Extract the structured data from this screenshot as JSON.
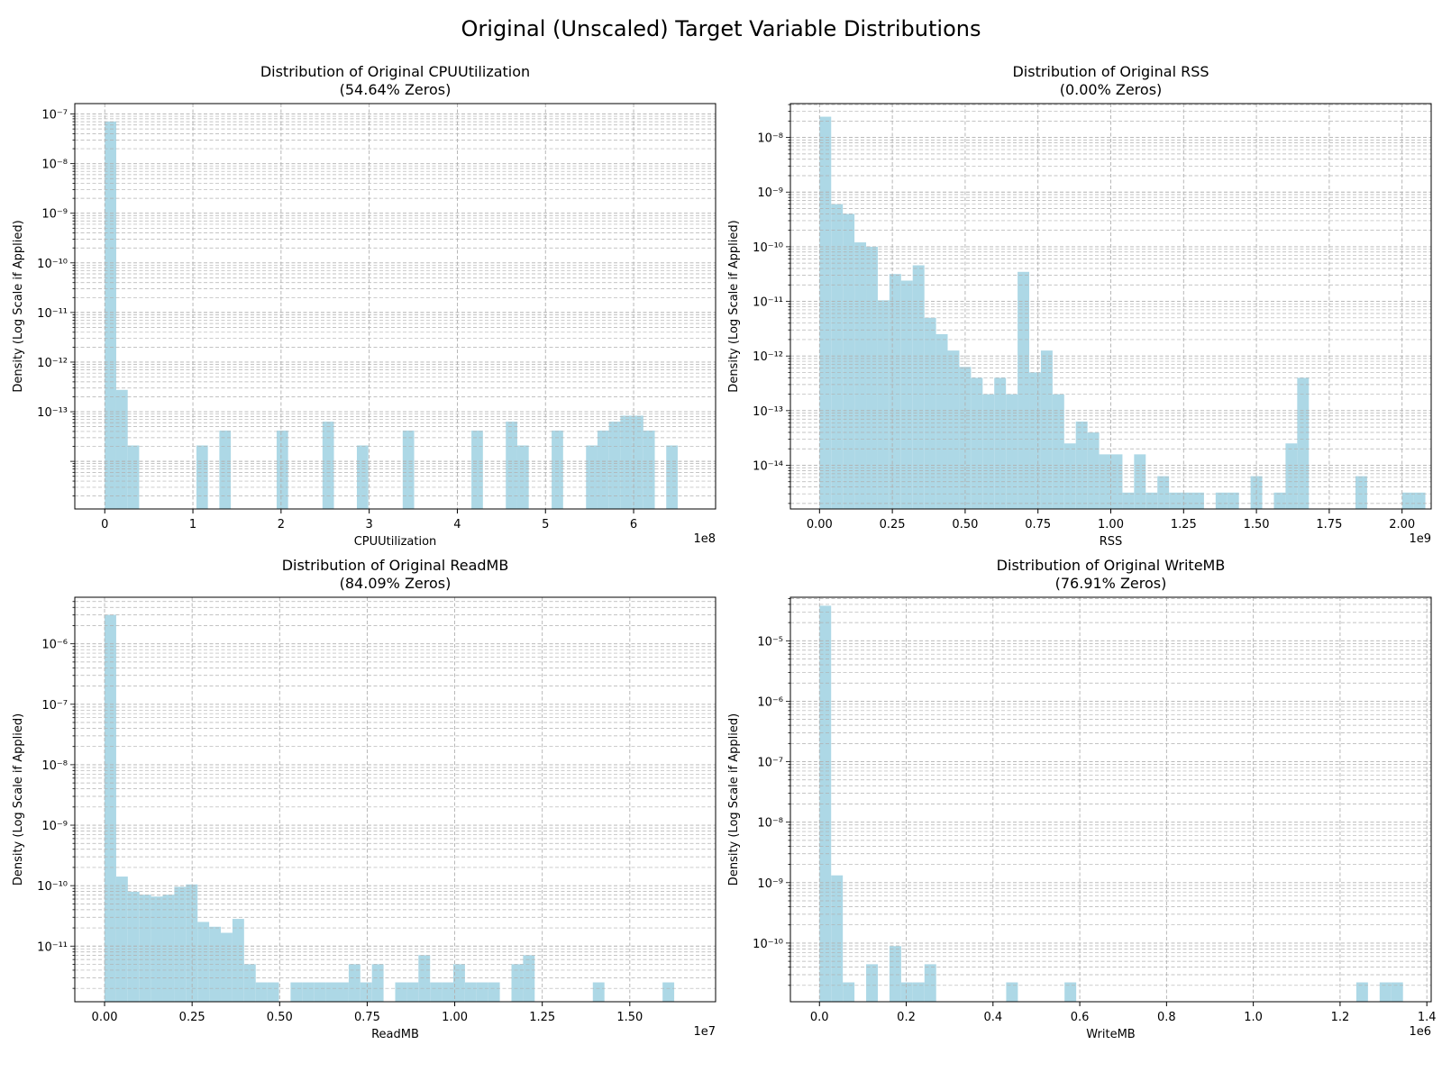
{
  "suptitle": "Original (Unscaled) Target Variable Distributions",
  "colors": {
    "bar": "#ADD8E6",
    "grid": "#b0b0b0",
    "axis": "#000000"
  },
  "chart_data": [
    {
      "type": "bar",
      "title_line1": "Distribution of Original CPUUtilization",
      "title_line2": "(54.64% Zeros)",
      "xlabel": "CPUUtilization",
      "ylabel": "Density (Log Scale if Applied)",
      "offset_label": "1e8",
      "x_scale": 100000000,
      "xlim": [
        -3.4,
        69.3
      ],
      "x_ticks": [
        0,
        10,
        20,
        30,
        40,
        50,
        60
      ],
      "x_tick_labels": [
        "0",
        "1",
        "2",
        "3",
        "4",
        "5",
        "6"
      ],
      "y_scale": "log",
      "ylim_exp": [
        -14.96,
        -6.79
      ],
      "y_ticks_exp": [
        -13,
        -12,
        -11,
        -10,
        -9,
        -8,
        -7
      ],
      "y_tick_labels": [
        "10⁻¹³",
        "10⁻¹²",
        "10⁻¹¹",
        "10⁻¹⁰",
        "10⁻⁹",
        "10⁻⁸",
        "10⁻⁷"
      ],
      "grid": "major and minor, dashed",
      "bin_start": 0,
      "bin_width": 1.3,
      "bars_exp": [
        -7.15,
        -12.56,
        -13.68,
        null,
        null,
        null,
        null,
        null,
        -13.68,
        null,
        -13.38,
        null,
        null,
        null,
        null,
        -13.38,
        null,
        null,
        null,
        -13.2,
        null,
        null,
        -13.68,
        null,
        null,
        null,
        -13.38,
        null,
        null,
        null,
        null,
        null,
        -13.38,
        null,
        null,
        -13.2,
        -13.68,
        null,
        null,
        -13.38,
        null,
        null,
        -13.68,
        -13.38,
        -13.2,
        -13.08,
        -13.08,
        -13.38,
        null,
        -13.68
      ]
    },
    {
      "type": "bar",
      "title_line1": "Distribution of Original RSS",
      "title_line2": "(0.00% Zeros)",
      "xlabel": "RSS",
      "ylabel": "Density (Log Scale if Applied)",
      "offset_label": "1e9",
      "x_scale": 1000000000,
      "xlim": [
        -0.1,
        2.1
      ],
      "x_ticks": [
        0,
        0.25,
        0.5,
        0.75,
        1.0,
        1.25,
        1.5,
        1.75,
        2.0
      ],
      "x_tick_labels": [
        "0.00",
        "0.25",
        "0.50",
        "0.75",
        "1.00",
        "1.25",
        "1.50",
        "1.75",
        "2.00"
      ],
      "y_scale": "log",
      "ylim_exp": [
        -14.8,
        -7.38
      ],
      "y_ticks_exp": [
        -14,
        -13,
        -12,
        -11,
        -10,
        -9,
        -8
      ],
      "y_tick_labels": [
        "10⁻¹⁴",
        "10⁻¹³",
        "10⁻¹²",
        "10⁻¹¹",
        "10⁻¹⁰",
        "10⁻⁹",
        "10⁻⁸"
      ],
      "grid": "major and minor, dashed",
      "bin_start": 0,
      "bin_width": 0.04,
      "bars_exp": [
        -7.62,
        -9.22,
        -9.4,
        -9.92,
        -10.0,
        -10.98,
        -10.5,
        -10.62,
        -10.34,
        -11.3,
        -11.6,
        -11.9,
        -12.2,
        -12.4,
        -12.7,
        -12.4,
        -12.7,
        -10.46,
        -12.3,
        -11.9,
        -12.7,
        -13.6,
        -13.2,
        -13.4,
        -13.8,
        -13.8,
        -14.5,
        -13.8,
        -14.5,
        -14.2,
        -14.5,
        -14.5,
        -14.5,
        null,
        -14.5,
        -14.5,
        null,
        -14.2,
        null,
        -14.5,
        -13.6,
        -12.4,
        null,
        null,
        null,
        null,
        -14.2,
        null,
        null,
        null,
        -14.5,
        -14.5
      ]
    },
    {
      "type": "bar",
      "title_line1": "Distribution of Original ReadMB",
      "title_line2": "(84.09% Zeros)",
      "xlabel": "ReadMB",
      "ylabel": "Density (Log Scale if Applied)",
      "offset_label": "1e7",
      "x_scale": 10000000,
      "xlim": [
        -0.085,
        1.745
      ],
      "x_ticks": [
        0,
        0.25,
        0.5,
        0.75,
        1.0,
        1.25,
        1.5
      ],
      "x_tick_labels": [
        "0.00",
        "0.25",
        "0.50",
        "0.75",
        "1.00",
        "1.25",
        "1.50"
      ],
      "y_scale": "log",
      "ylim_exp": [
        -11.92,
        -5.23
      ],
      "y_ticks_exp": [
        -11,
        -10,
        -9,
        -8,
        -7,
        -6
      ],
      "y_tick_labels": [
        "10⁻¹¹",
        "10⁻¹⁰",
        "10⁻⁹",
        "10⁻⁸",
        "10⁻⁷",
        "10⁻⁶"
      ],
      "grid": "major and minor, dashed",
      "bin_start": 0,
      "bin_width": 0.0332,
      "bars_exp": [
        -5.52,
        -9.85,
        -10.1,
        -10.15,
        -10.18,
        -10.15,
        -10.02,
        -9.98,
        -10.6,
        -10.68,
        -10.78,
        -10.55,
        -11.3,
        -11.6,
        -11.6,
        null,
        -11.6,
        -11.6,
        -11.6,
        -11.6,
        -11.6,
        -11.3,
        -11.6,
        -11.3,
        null,
        -11.6,
        -11.6,
        -11.15,
        -11.6,
        -11.6,
        -11.3,
        -11.6,
        -11.6,
        -11.6,
        null,
        -11.3,
        -11.15,
        null,
        null,
        null,
        null,
        null,
        -11.6,
        null,
        null,
        null,
        null,
        null,
        -11.6
      ]
    },
    {
      "type": "bar",
      "title_line1": "Distribution of Original WriteMB",
      "title_line2": "(76.91% Zeros)",
      "xlabel": "WriteMB",
      "ylabel": "Density (Log Scale if Applied)",
      "offset_label": "1e6",
      "x_scale": 1000000,
      "xlim": [
        -0.067,
        1.41
      ],
      "x_ticks": [
        0,
        0.2,
        0.4,
        0.6,
        0.8,
        1.0,
        1.2,
        1.4
      ],
      "x_tick_labels": [
        "0.0",
        "0.2",
        "0.4",
        "0.6",
        "0.8",
        "1.0",
        "1.2",
        "1.4"
      ],
      "y_scale": "log",
      "ylim_exp": [
        -10.97,
        -4.28
      ],
      "y_ticks_exp": [
        -10,
        -9,
        -8,
        -7,
        -6,
        -5
      ],
      "y_tick_labels": [
        "10⁻¹⁰",
        "10⁻⁹",
        "10⁻⁸",
        "10⁻⁷",
        "10⁻⁶",
        "10⁻⁵"
      ],
      "grid": "major and minor, dashed",
      "bin_start": 0,
      "bin_width": 0.0269,
      "bars_exp": [
        -4.42,
        -8.88,
        -10.65,
        null,
        -10.35,
        null,
        -10.05,
        -10.65,
        -10.65,
        -10.35,
        null,
        null,
        null,
        null,
        null,
        null,
        -10.65,
        null,
        null,
        null,
        null,
        -10.65,
        null,
        null,
        null,
        null,
        null,
        null,
        null,
        null,
        null,
        null,
        null,
        null,
        null,
        null,
        null,
        null,
        null,
        null,
        null,
        null,
        null,
        null,
        null,
        null,
        -10.65,
        null,
        -10.65,
        -10.65
      ]
    }
  ]
}
